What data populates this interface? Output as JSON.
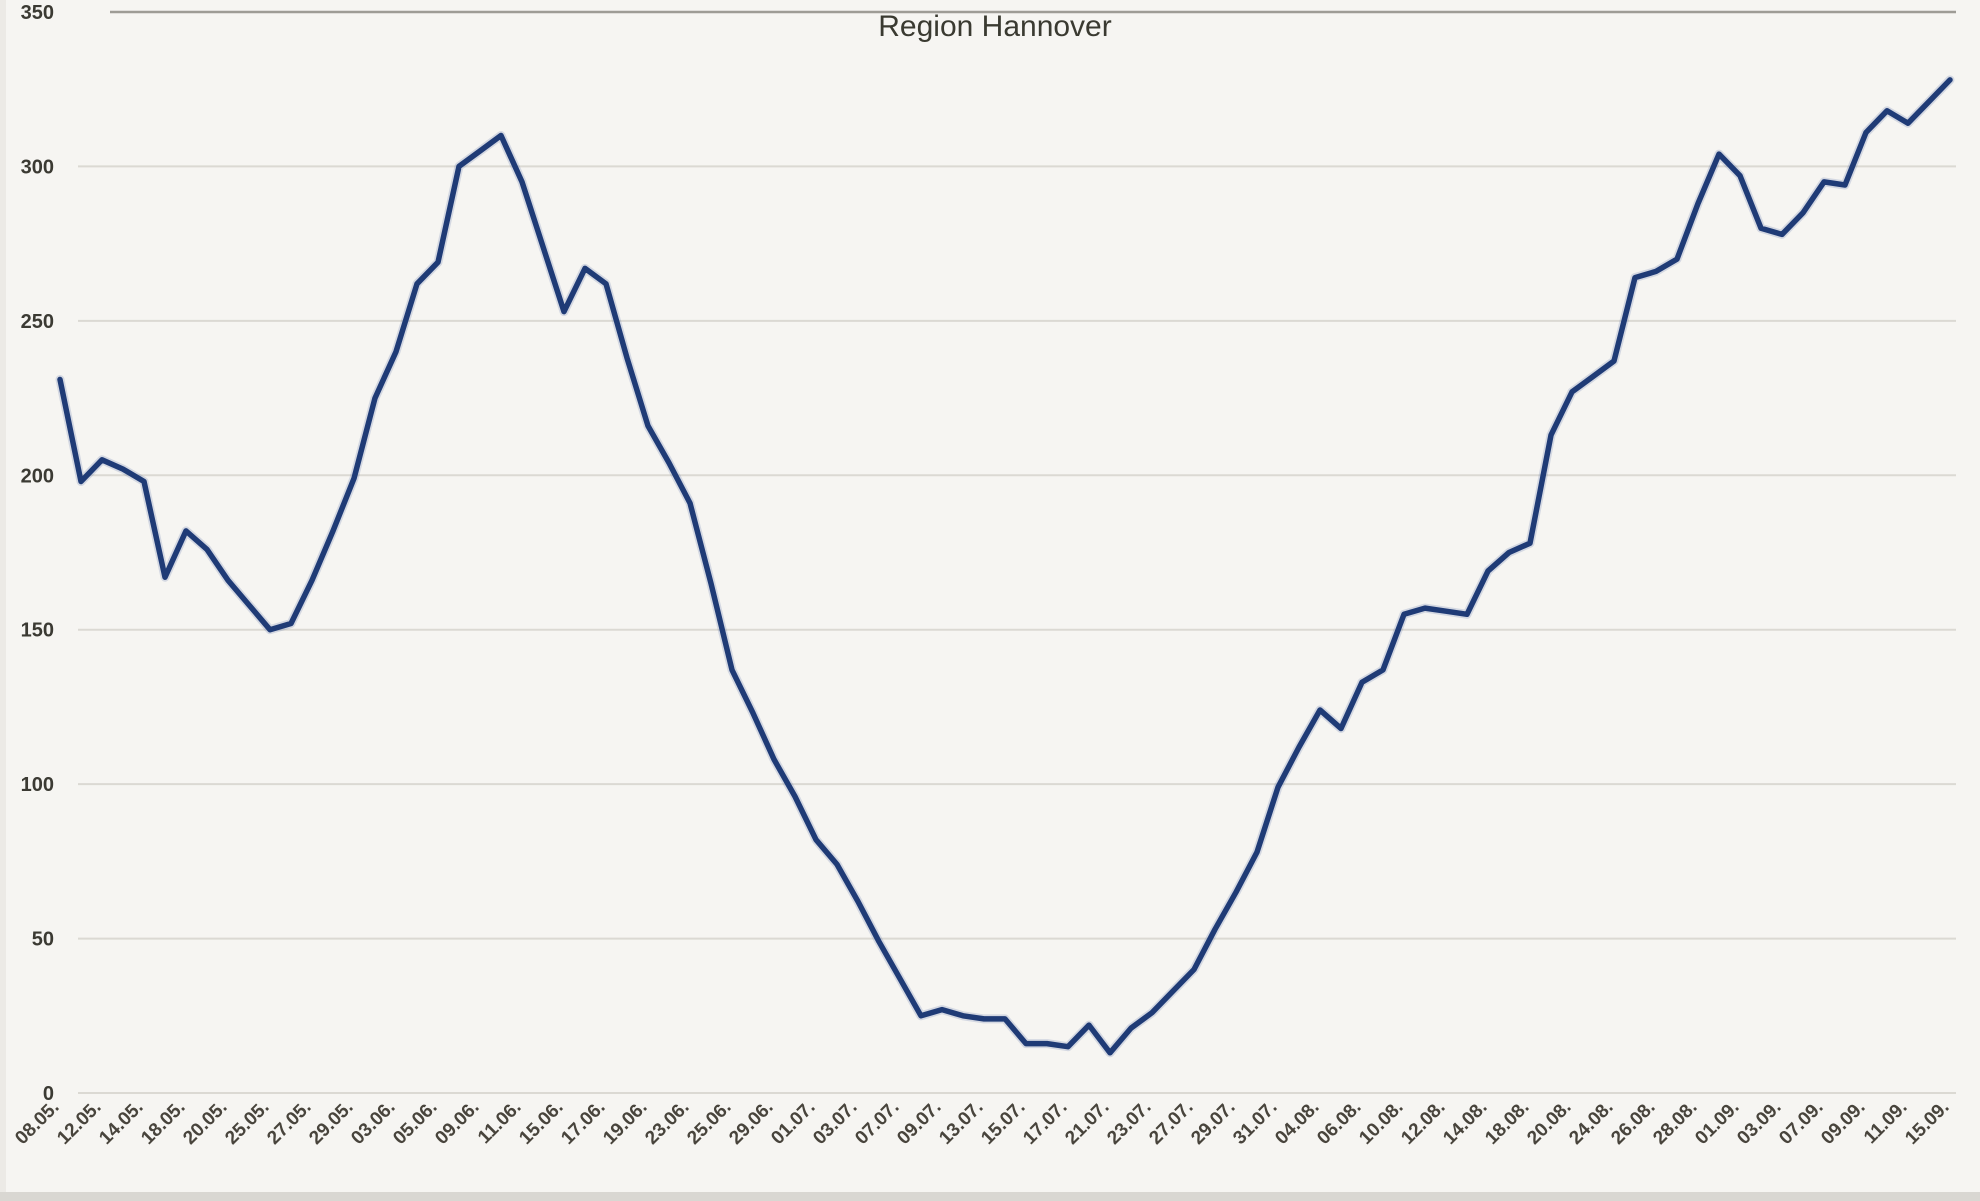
{
  "page": {
    "background": "#f6f5f2"
  },
  "chart_data": {
    "type": "line",
    "title": "Region Hannover",
    "xlabel": "",
    "ylabel": "",
    "ylim": [
      0,
      350
    ],
    "yticks": [
      0,
      50,
      100,
      150,
      200,
      250,
      300,
      350
    ],
    "grid": true,
    "legend_position": "none",
    "x_labels": [
      "08.05.",
      "12.05.",
      "14.05.",
      "18.05.",
      "20.05.",
      "25.05.",
      "27.05.",
      "29.05.",
      "03.06.",
      "05.06.",
      "09.06.",
      "11.06.",
      "15.06.",
      "17.06.",
      "19.06.",
      "23.06.",
      "25.06.",
      "29.06.",
      "01.07.",
      "03.07.",
      "07.07.",
      "09.07.",
      "13.07.",
      "15.07.",
      "17.07.",
      "21.07.",
      "23.07.",
      "27.07.",
      "29.07.",
      "31.07.",
      "04.08.",
      "06.08.",
      "10.08.",
      "12.08.",
      "14.08.",
      "18.08.",
      "20.08.",
      "24.08.",
      "26.08.",
      "28.08.",
      "01.09.",
      "03.09.",
      "07.09.",
      "09.09.",
      "11.09.",
      "15.09."
    ],
    "label_every_n_points": 2,
    "values": [
      231,
      198,
      205,
      202,
      198,
      167,
      182,
      176,
      166,
      158,
      150,
      152,
      166,
      182,
      199,
      225,
      240,
      262,
      269,
      300,
      305,
      310,
      295,
      274,
      253,
      267,
      262,
      238,
      216,
      204,
      191,
      165,
      137,
      123,
      108,
      96,
      82,
      74,
      62,
      49,
      37,
      25,
      27,
      25,
      24,
      24,
      16,
      16,
      15,
      22,
      13,
      21,
      26,
      33,
      40,
      53,
      65,
      78,
      99,
      112,
      124,
      118,
      133,
      137,
      155,
      157,
      156,
      155,
      169,
      175,
      178,
      213,
      227,
      232,
      237,
      264,
      266,
      270,
      288,
      304,
      297,
      280,
      278,
      285,
      295,
      294,
      311,
      318,
      314,
      321,
      328
    ],
    "colors": {
      "line": "#1f3b76",
      "line_halo": "rgba(40,70,140,0.16)",
      "grid": "#dbd9d3",
      "grid_top": "#9e9c96",
      "y_tick_text": "#3b3a33",
      "x_tick_text": "#48443c",
      "title_text": "#3a3a31"
    }
  }
}
